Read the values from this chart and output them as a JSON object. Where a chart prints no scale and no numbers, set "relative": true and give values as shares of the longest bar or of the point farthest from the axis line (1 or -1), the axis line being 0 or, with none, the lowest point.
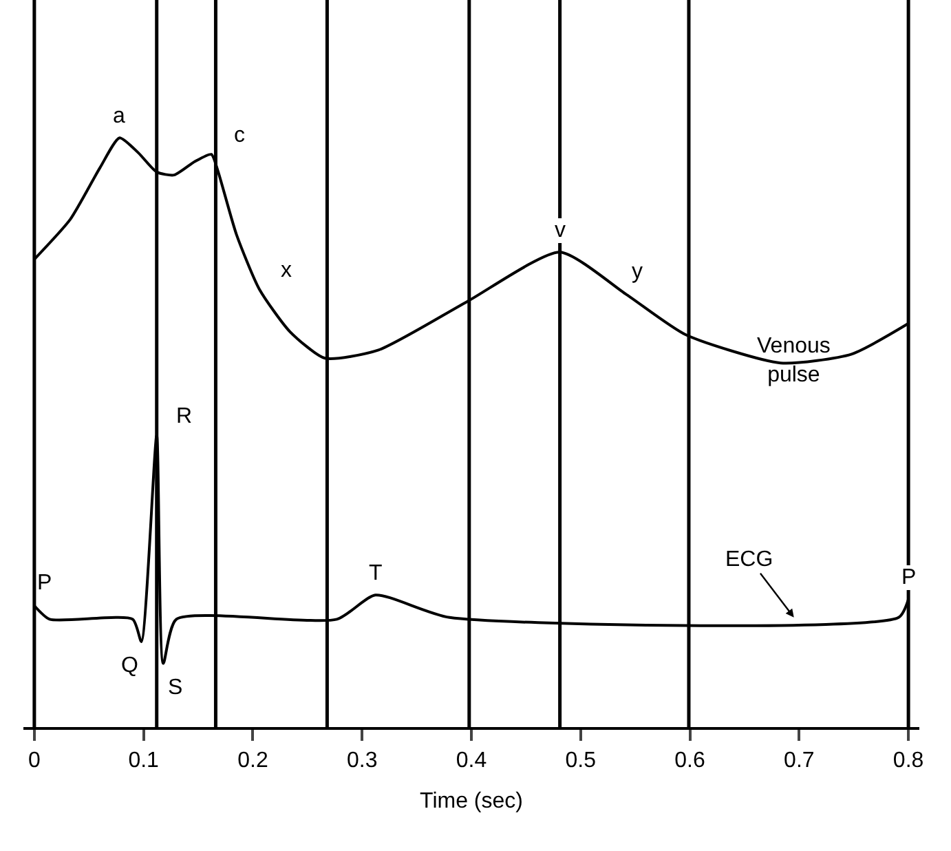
{
  "chart_data": {
    "type": "line",
    "relative": true,
    "xlabel": "Time (sec)",
    "xlim": [
      -0.01,
      0.81
    ],
    "xticks": [
      0,
      0.1,
      0.2,
      0.3,
      0.4,
      0.5,
      0.6,
      0.7,
      0.8
    ],
    "grid": false,
    "legend": false,
    "marker": "none",
    "line_style": "solid",
    "series": [
      {
        "name": "Venous\npulse",
        "color": "#000000",
        "x": [
          0.0,
          0.033,
          0.06,
          0.078,
          0.095,
          0.112,
          0.128,
          0.147,
          0.162,
          0.168,
          0.185,
          0.206,
          0.234,
          0.266,
          0.315,
          0.396,
          0.481,
          0.542,
          0.596,
          0.683,
          0.748,
          0.8
        ],
        "values": [
          0.794,
          0.862,
          0.949,
          1.0,
          0.975,
          0.942,
          0.937,
          0.96,
          0.972,
          0.944,
          0.836,
          0.743,
          0.671,
          0.626,
          0.64,
          0.722,
          0.806,
          0.734,
          0.666,
          0.618,
          0.633,
          0.685
        ]
      },
      {
        "name": "ECG",
        "color": "#000000",
        "x": [
          0.0,
          0.014,
          0.09,
          0.098,
          0.112,
          0.118,
          0.13,
          0.277,
          0.312,
          0.38,
          0.791,
          0.8
        ],
        "values": [
          0.206,
          0.183,
          0.183,
          0.145,
          0.495,
          0.108,
          0.183,
          0.183,
          0.224,
          0.186,
          0.186,
          0.217
        ]
      }
    ],
    "ref_lines": [
      {
        "axis": "x",
        "value": 0.0
      },
      {
        "axis": "x",
        "value": 0.112
      },
      {
        "axis": "x",
        "value": 0.166
      },
      {
        "axis": "x",
        "value": 0.268
      },
      {
        "axis": "x",
        "value": 0.398
      },
      {
        "axis": "x",
        "value": 0.481
      },
      {
        "axis": "x",
        "value": 0.599
      },
      {
        "axis": "x",
        "value": 0.8
      }
    ],
    "annotations": [
      {
        "text": "a",
        "x": 0.078,
        "y": 1.0
      },
      {
        "text": "c",
        "x": 0.162,
        "y": 0.972
      },
      {
        "text": "x",
        "x": 0.206,
        "y": 0.743
      },
      {
        "text": "v",
        "x": 0.481,
        "y": 0.806
      },
      {
        "text": "y",
        "x": 0.542,
        "y": 0.734
      },
      {
        "text": "P",
        "x": 0.0,
        "y": 0.206
      },
      {
        "text": "R",
        "x": 0.112,
        "y": 0.495
      },
      {
        "text": "Q",
        "x": 0.098,
        "y": 0.145
      },
      {
        "text": "S",
        "x": 0.118,
        "y": 0.108
      },
      {
        "text": "T",
        "x": 0.312,
        "y": 0.224
      },
      {
        "text": "P",
        "x": 0.8,
        "y": 0.217
      }
    ]
  }
}
